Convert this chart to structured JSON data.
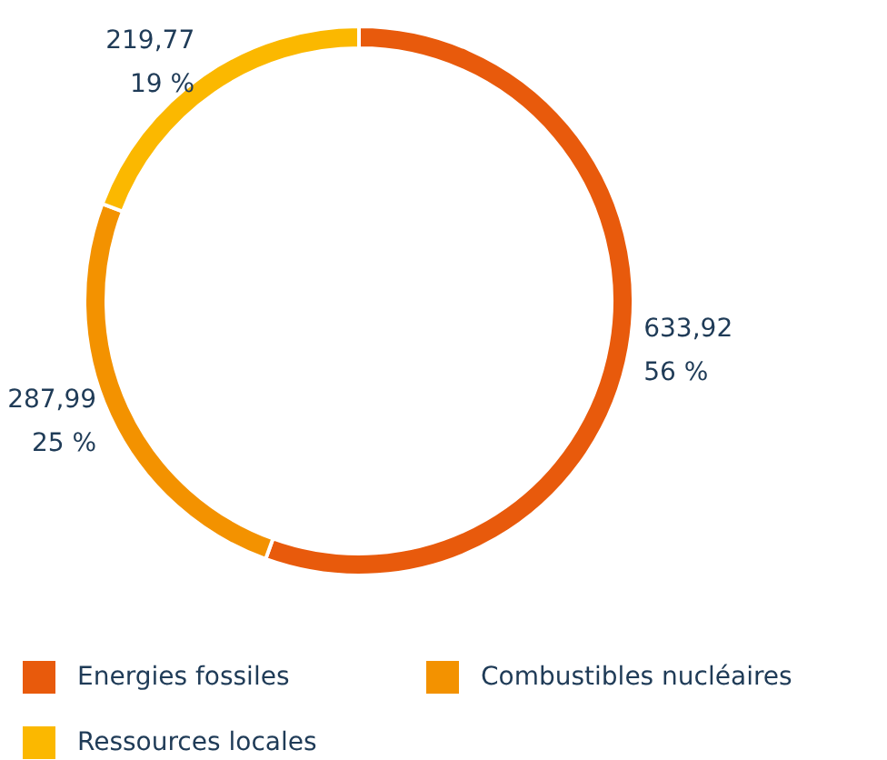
{
  "chart_data": {
    "type": "donut",
    "categories": [
      "Energies fossiles",
      "Combustibles nucléaires",
      "Ressources locales"
    ],
    "values": [
      633.92,
      287.99,
      219.77
    ],
    "colors": [
      "#e85a0c",
      "#f39200",
      "#fbb800"
    ],
    "value_labels": [
      "633,92\n56 %",
      "287,99\n25 %",
      "219,77\n19 %"
    ],
    "legend": "bottom"
  }
}
